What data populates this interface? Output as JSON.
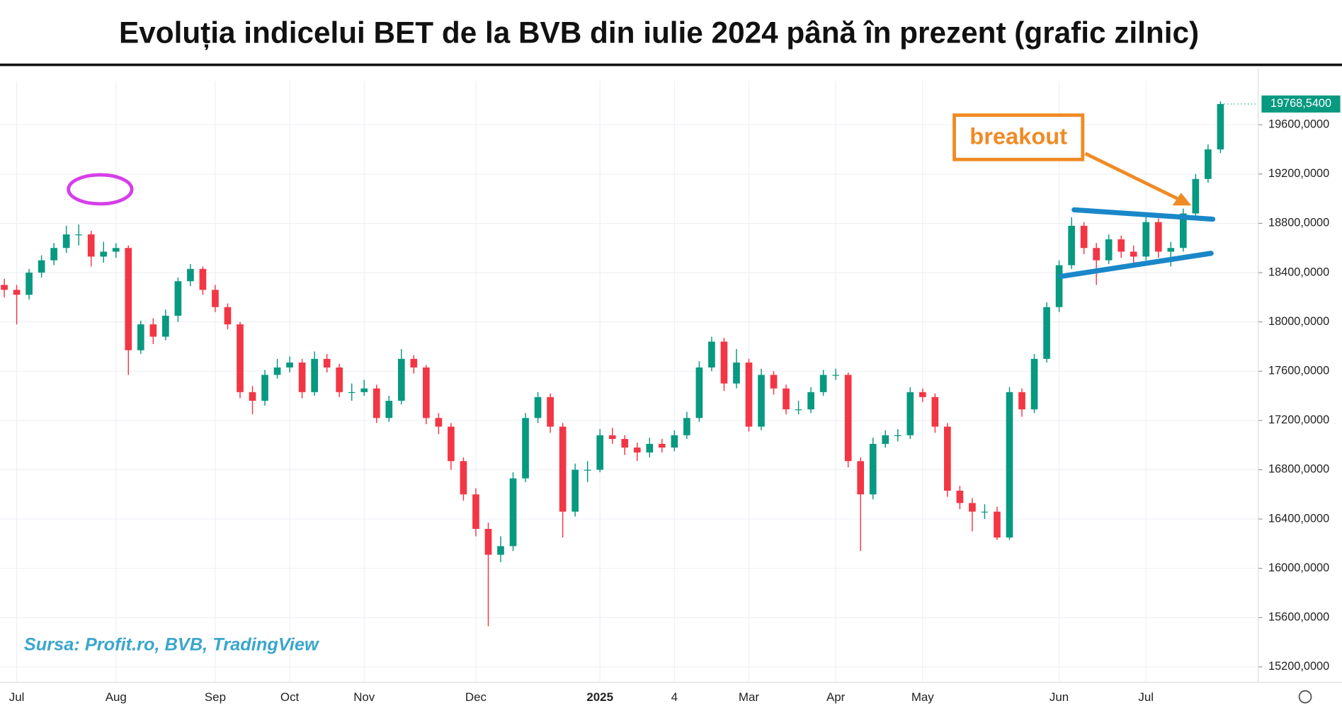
{
  "chart_data": {
    "type": "candlestick",
    "title": "Evoluția indicelui BET de la BVB din iulie 2024 până în prezent (grafic zilnic)",
    "source": "Sursa: Profit.ro, BVB, TradingView",
    "annotation": "breakout",
    "last_value_label": "19768,5400",
    "up_color": "#089981",
    "down_color": "#f23645",
    "grid": true,
    "ylim": [
      15075,
      19955
    ],
    "yticks": [
      {
        "value": 15200,
        "label": "15200,0000"
      },
      {
        "value": 15600,
        "label": "15600,0000"
      },
      {
        "value": 16000,
        "label": "16000,0000"
      },
      {
        "value": 16400,
        "label": "16400,0000"
      },
      {
        "value": 16800,
        "label": "16800,0000"
      },
      {
        "value": 17200,
        "label": "17200,0000"
      },
      {
        "value": 17600,
        "label": "17600,0000"
      },
      {
        "value": 18000,
        "label": "18000,0000"
      },
      {
        "value": 18400,
        "label": "18400,0000"
      },
      {
        "value": 18800,
        "label": "18800,0000"
      },
      {
        "value": 19200,
        "label": "19200,0000"
      },
      {
        "value": 19600,
        "label": "19600,0000"
      }
    ],
    "categories": [
      null,
      "Jul",
      null,
      null,
      null,
      null,
      null,
      null,
      null,
      "Aug",
      null,
      null,
      null,
      null,
      null,
      null,
      null,
      "Sep",
      null,
      null,
      null,
      null,
      null,
      "Oct",
      null,
      null,
      null,
      null,
      null,
      "Nov",
      null,
      null,
      null,
      null,
      null,
      null,
      null,
      null,
      "Dec",
      null,
      null,
      null,
      null,
      null,
      null,
      null,
      null,
      null,
      "2025",
      null,
      null,
      null,
      null,
      null,
      "4",
      null,
      null,
      null,
      null,
      null,
      "Mar",
      null,
      null,
      null,
      null,
      null,
      null,
      "Apr",
      null,
      null,
      null,
      null,
      null,
      null,
      "May",
      null,
      null,
      null,
      null,
      null,
      null,
      null,
      null,
      null,
      null,
      "Jun",
      null,
      null,
      null,
      null,
      null,
      null,
      "Jul",
      null,
      null,
      null,
      null,
      null,
      null
    ],
    "candles": [
      [
        18300,
        18350,
        18200,
        18260
      ],
      [
        18260,
        18300,
        17980,
        18220
      ],
      [
        18220,
        18430,
        18180,
        18400
      ],
      [
        18400,
        18540,
        18360,
        18500
      ],
      [
        18500,
        18640,
        18460,
        18600
      ],
      [
        18600,
        18780,
        18560,
        18710
      ],
      [
        18710,
        18790,
        18620,
        18710
      ],
      [
        18710,
        18740,
        18450,
        18530
      ],
      [
        18530,
        18650,
        18480,
        18570
      ],
      [
        18570,
        18640,
        18520,
        18600
      ],
      [
        18600,
        18620,
        17570,
        17770
      ],
      [
        17770,
        18010,
        17740,
        17980
      ],
      [
        17980,
        18030,
        17820,
        17880
      ],
      [
        17880,
        18100,
        17850,
        18050
      ],
      [
        18050,
        18360,
        18000,
        18330
      ],
      [
        18330,
        18470,
        18290,
        18430
      ],
      [
        18430,
        18450,
        18220,
        18260
      ],
      [
        18260,
        18300,
        18080,
        18120
      ],
      [
        18120,
        18150,
        17940,
        17980
      ],
      [
        17980,
        18000,
        17380,
        17430
      ],
      [
        17430,
        17480,
        17250,
        17360
      ],
      [
        17360,
        17610,
        17320,
        17570
      ],
      [
        17570,
        17700,
        17540,
        17630
      ],
      [
        17630,
        17720,
        17590,
        17670
      ],
      [
        17670,
        17700,
        17380,
        17430
      ],
      [
        17430,
        17760,
        17400,
        17700
      ],
      [
        17700,
        17740,
        17590,
        17630
      ],
      [
        17630,
        17660,
        17390,
        17430
      ],
      [
        17430,
        17500,
        17360,
        17430
      ],
      [
        17430,
        17530,
        17400,
        17460
      ],
      [
        17460,
        17490,
        17180,
        17220
      ],
      [
        17220,
        17400,
        17190,
        17360
      ],
      [
        17360,
        17780,
        17330,
        17700
      ],
      [
        17700,
        17730,
        17580,
        17630
      ],
      [
        17630,
        17650,
        17170,
        17220
      ],
      [
        17220,
        17260,
        17090,
        17150
      ],
      [
        17150,
        17180,
        16800,
        16870
      ],
      [
        16870,
        16900,
        16550,
        16600
      ],
      [
        16600,
        16650,
        16260,
        16320
      ],
      [
        16320,
        16370,
        15530,
        16110
      ],
      [
        16110,
        16260,
        16050,
        16180
      ],
      [
        16180,
        16780,
        16140,
        16730
      ],
      [
        16730,
        17260,
        16700,
        17220
      ],
      [
        17220,
        17430,
        17180,
        17390
      ],
      [
        17390,
        17420,
        17100,
        17150
      ],
      [
        17150,
        17180,
        16250,
        16460
      ],
      [
        16460,
        16850,
        16420,
        16800
      ],
      [
        16800,
        16870,
        16700,
        16800
      ],
      [
        16800,
        17130,
        16780,
        17080
      ],
      [
        17080,
        17140,
        17010,
        17050
      ],
      [
        17050,
        17080,
        16920,
        16980
      ],
      [
        16980,
        17020,
        16870,
        16940
      ],
      [
        16940,
        17060,
        16900,
        17010
      ],
      [
        17010,
        17050,
        16940,
        16980
      ],
      [
        16980,
        17120,
        16950,
        17080
      ],
      [
        17080,
        17270,
        17050,
        17220
      ],
      [
        17220,
        17680,
        17190,
        17630
      ],
      [
        17630,
        17880,
        17600,
        17840
      ],
      [
        17840,
        17870,
        17440,
        17500
      ],
      [
        17500,
        17780,
        17460,
        17670
      ],
      [
        17670,
        17700,
        17110,
        17150
      ],
      [
        17150,
        17620,
        17120,
        17570
      ],
      [
        17570,
        17600,
        17410,
        17460
      ],
      [
        17460,
        17490,
        17250,
        17290
      ],
      [
        17290,
        17360,
        17250,
        17290
      ],
      [
        17290,
        17470,
        17260,
        17430
      ],
      [
        17430,
        17610,
        17400,
        17570
      ],
      [
        17570,
        17620,
        17530,
        17570
      ],
      [
        17570,
        17590,
        16820,
        16870
      ],
      [
        16870,
        16900,
        16140,
        16600
      ],
      [
        16600,
        17060,
        16560,
        17010
      ],
      [
        17010,
        17120,
        16980,
        17080
      ],
      [
        17080,
        17130,
        17030,
        17080
      ],
      [
        17080,
        17470,
        17050,
        17430
      ],
      [
        17430,
        17460,
        17350,
        17390
      ],
      [
        17390,
        17420,
        17100,
        17150
      ],
      [
        17150,
        17180,
        16580,
        16630
      ],
      [
        16630,
        16670,
        16480,
        16530
      ],
      [
        16530,
        16570,
        16300,
        16460
      ],
      [
        16460,
        16520,
        16400,
        16460
      ],
      [
        16460,
        16500,
        16230,
        16250
      ],
      [
        16250,
        17470,
        16230,
        17430
      ],
      [
        17430,
        17460,
        17230,
        17290
      ],
      [
        17290,
        17740,
        17260,
        17700
      ],
      [
        17700,
        18160,
        17670,
        18120
      ],
      [
        18120,
        18500,
        18080,
        18460
      ],
      [
        18460,
        18850,
        18430,
        18780
      ],
      [
        18780,
        18810,
        18550,
        18600
      ],
      [
        18600,
        18640,
        18300,
        18500
      ],
      [
        18500,
        18710,
        18470,
        18670
      ],
      [
        18670,
        18700,
        18520,
        18570
      ],
      [
        18570,
        18620,
        18480,
        18530
      ],
      [
        18530,
        18860,
        18500,
        18810
      ],
      [
        18810,
        18840,
        18520,
        18570
      ],
      [
        18570,
        18650,
        18450,
        18600
      ],
      [
        18600,
        18920,
        18570,
        18880
      ],
      [
        18880,
        19200,
        18850,
        19160
      ],
      [
        19160,
        19440,
        19130,
        19400
      ],
      [
        19400,
        19790,
        19370,
        19768.54
      ]
    ]
  }
}
